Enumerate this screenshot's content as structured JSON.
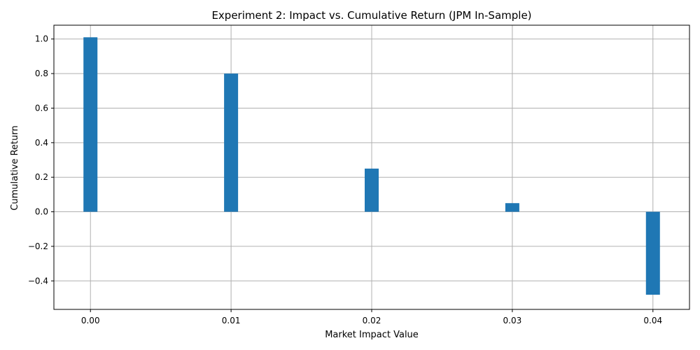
{
  "chart_data": {
    "type": "bar",
    "title": "Experiment 2: Impact vs. Cumulative Return (JPM In-Sample)",
    "xlabel": "Market Impact Value",
    "ylabel": "Cumulative Return",
    "x": [
      0.0,
      0.01,
      0.02,
      0.03,
      0.04
    ],
    "values": [
      1.01,
      0.8,
      0.25,
      0.05,
      -0.48
    ],
    "xticks": [
      "0.00",
      "0.01",
      "0.02",
      "0.03",
      "0.04"
    ],
    "yticks": [
      "1.0",
      "0.8",
      "0.6",
      "0.4",
      "0.2",
      "0.0",
      "−0.2",
      "−0.4"
    ],
    "ytick_values": [
      1.0,
      0.8,
      0.6,
      0.4,
      0.2,
      0.0,
      -0.2,
      -0.4
    ],
    "xlim": [
      -0.0026,
      0.0426
    ],
    "ylim": [
      -0.565,
      1.08
    ],
    "grid": true,
    "bar_color": "#1f77b4",
    "grid_color": "#b0b0b0"
  }
}
